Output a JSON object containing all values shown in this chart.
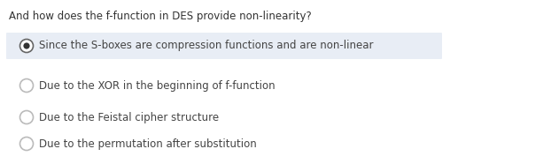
{
  "question": "And how does the f-function in DES provide non-linearity?",
  "options": [
    "Since the S-boxes are compression functions and are non-linear",
    "Due to the XOR in the beginning of f-function",
    "Due to the Feistal cipher structure",
    "Due to the permutation after substitution"
  ],
  "selected_index": 0,
  "background_color": "#ffffff",
  "highlight_color": "#e8edf5",
  "question_color": "#333333",
  "option_color": "#444444",
  "selected_dot_color": "#333333",
  "unselected_circle_edge": "#bbbbbb",
  "question_fontsize": 8.5,
  "option_fontsize": 8.5,
  "fig_width": 6.22,
  "fig_height": 1.86,
  "dpi": 100
}
